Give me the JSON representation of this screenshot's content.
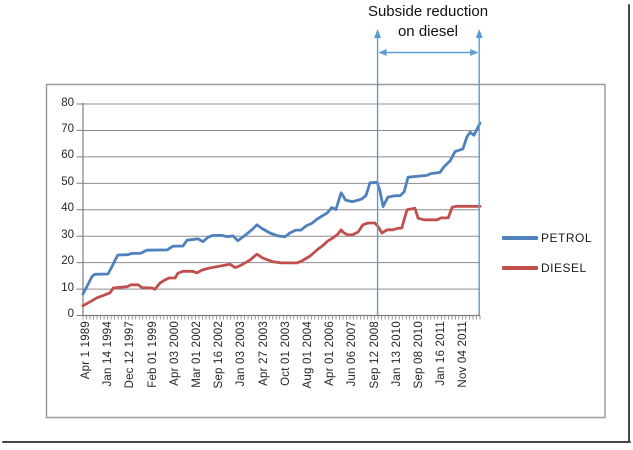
{
  "annotation": {
    "line1": "Subside reduction",
    "line2": "on diesel"
  },
  "legend": [
    {
      "label": "PETROL"
    },
    {
      "label": "DIESEL"
    }
  ],
  "colors": {
    "petrol_line": "#4f81bd",
    "diesel_line": "#c0504d",
    "annotation_arrow": "#5b9bd5",
    "gridline": "#8c8c8c",
    "axis": "#7f7f7f",
    "chart_border": "#9c9c9c",
    "label_text": "#262626",
    "frame_shadow": "#474747"
  },
  "chart_data": {
    "type": "line",
    "title": "",
    "xlabel": "",
    "ylabel": "",
    "ylim": [
      0,
      80
    ],
    "y_ticks": [
      0,
      10,
      20,
      30,
      40,
      50,
      60,
      70,
      80
    ],
    "grid": true,
    "legend_position": "right",
    "x_tick_labels": [
      "Apr 1 1989",
      "Jan 14 1994",
      "Dec 12 1997",
      "Feb 01 1999",
      "Apr 03 2000",
      "Mar 01 2002",
      "Sep 16 2002",
      "Jan 03 2003",
      "Apr 27 2003",
      "Oct 01 2003",
      "Aug 01 2004",
      "Apr 01 2006",
      "Jun 06 2007",
      "Sep 12 2008",
      "Jan 13 2010",
      "Sep 08 2010",
      "Jan 16 2011",
      "Nov 04 2011"
    ],
    "annotation_span": {
      "text": "Subside reduction on diesel",
      "start_at_label": "Sep 12 2008",
      "end_at": "chart right edge (after Nov 04 2011)",
      "start_fraction": 0.742,
      "end_fraction": 0.998
    },
    "series": [
      {
        "name": "PETROL",
        "color": "#4f81bd",
        "points": [
          [
            0.0,
            8.2
          ],
          [
            0.01,
            11.0
          ],
          [
            0.023,
            14.8
          ],
          [
            0.03,
            15.6
          ],
          [
            0.063,
            15.7
          ],
          [
            0.073,
            18.5
          ],
          [
            0.081,
            21.0
          ],
          [
            0.088,
            22.9
          ],
          [
            0.113,
            23.0
          ],
          [
            0.123,
            23.5
          ],
          [
            0.144,
            23.5
          ],
          [
            0.151,
            24.0
          ],
          [
            0.161,
            24.7
          ],
          [
            0.212,
            24.8
          ],
          [
            0.219,
            25.5
          ],
          [
            0.227,
            26.2
          ],
          [
            0.252,
            26.3
          ],
          [
            0.262,
            28.5
          ],
          [
            0.29,
            29.0
          ],
          [
            0.302,
            27.9
          ],
          [
            0.315,
            29.6
          ],
          [
            0.327,
            30.3
          ],
          [
            0.35,
            30.3
          ],
          [
            0.363,
            29.8
          ],
          [
            0.378,
            30.1
          ],
          [
            0.39,
            28.3
          ],
          [
            0.408,
            30.3
          ],
          [
            0.426,
            32.5
          ],
          [
            0.438,
            34.3
          ],
          [
            0.451,
            32.9
          ],
          [
            0.471,
            31.2
          ],
          [
            0.491,
            30.1
          ],
          [
            0.509,
            29.8
          ],
          [
            0.521,
            31.2
          ],
          [
            0.536,
            32.3
          ],
          [
            0.549,
            32.3
          ],
          [
            0.562,
            33.9
          ],
          [
            0.577,
            34.9
          ],
          [
            0.589,
            36.4
          ],
          [
            0.602,
            37.6
          ],
          [
            0.615,
            38.8
          ],
          [
            0.627,
            40.8
          ],
          [
            0.637,
            40.1
          ],
          [
            0.65,
            46.4
          ],
          [
            0.662,
            43.6
          ],
          [
            0.678,
            43.1
          ],
          [
            0.69,
            43.5
          ],
          [
            0.703,
            44.1
          ],
          [
            0.713,
            45.5
          ],
          [
            0.723,
            50.2
          ],
          [
            0.741,
            50.4
          ],
          [
            0.748,
            47.0
          ],
          [
            0.756,
            41.2
          ],
          [
            0.768,
            44.8
          ],
          [
            0.786,
            45.3
          ],
          [
            0.799,
            45.3
          ],
          [
            0.809,
            46.8
          ],
          [
            0.819,
            52.3
          ],
          [
            0.866,
            53.0
          ],
          [
            0.877,
            53.7
          ],
          [
            0.899,
            54.1
          ],
          [
            0.909,
            56.2
          ],
          [
            0.925,
            58.5
          ],
          [
            0.937,
            62.0
          ],
          [
            0.957,
            63.0
          ],
          [
            0.967,
            67.5
          ],
          [
            0.975,
            69.3
          ],
          [
            0.985,
            68.2
          ],
          [
            1.0,
            72.8
          ]
        ]
      },
      {
        "name": "DIESEL",
        "color": "#c0504d",
        "points": [
          [
            0.0,
            3.7
          ],
          [
            0.018,
            5.2
          ],
          [
            0.035,
            6.7
          ],
          [
            0.05,
            7.5
          ],
          [
            0.068,
            8.6
          ],
          [
            0.076,
            10.4
          ],
          [
            0.111,
            10.9
          ],
          [
            0.121,
            11.6
          ],
          [
            0.139,
            11.6
          ],
          [
            0.149,
            10.5
          ],
          [
            0.174,
            10.4
          ],
          [
            0.181,
            9.9
          ],
          [
            0.194,
            12.3
          ],
          [
            0.207,
            13.5
          ],
          [
            0.217,
            14.2
          ],
          [
            0.232,
            14.2
          ],
          [
            0.239,
            16.0
          ],
          [
            0.252,
            16.7
          ],
          [
            0.277,
            16.7
          ],
          [
            0.287,
            16.1
          ],
          [
            0.3,
            17.2
          ],
          [
            0.32,
            18.0
          ],
          [
            0.345,
            18.7
          ],
          [
            0.37,
            19.4
          ],
          [
            0.383,
            18.1
          ],
          [
            0.395,
            18.8
          ],
          [
            0.421,
            21.0
          ],
          [
            0.438,
            23.2
          ],
          [
            0.453,
            21.7
          ],
          [
            0.479,
            20.3
          ],
          [
            0.501,
            19.9
          ],
          [
            0.539,
            19.9
          ],
          [
            0.552,
            20.7
          ],
          [
            0.572,
            22.5
          ],
          [
            0.592,
            25.1
          ],
          [
            0.605,
            26.6
          ],
          [
            0.617,
            28.2
          ],
          [
            0.63,
            29.4
          ],
          [
            0.642,
            30.8
          ],
          [
            0.65,
            32.4
          ],
          [
            0.657,
            31.3
          ],
          [
            0.667,
            30.5
          ],
          [
            0.68,
            30.6
          ],
          [
            0.693,
            31.6
          ],
          [
            0.705,
            34.3
          ],
          [
            0.718,
            35.0
          ],
          [
            0.735,
            35.0
          ],
          [
            0.743,
            33.7
          ],
          [
            0.753,
            31.2
          ],
          [
            0.766,
            32.4
          ],
          [
            0.781,
            32.4
          ],
          [
            0.793,
            33.0
          ],
          [
            0.803,
            33.1
          ],
          [
            0.816,
            40.0
          ],
          [
            0.836,
            40.6
          ],
          [
            0.844,
            36.8
          ],
          [
            0.859,
            36.2
          ],
          [
            0.892,
            36.2
          ],
          [
            0.902,
            36.9
          ],
          [
            0.92,
            36.9
          ],
          [
            0.93,
            41.0
          ],
          [
            0.942,
            41.3
          ],
          [
            1.0,
            41.3
          ]
        ]
      }
    ]
  }
}
